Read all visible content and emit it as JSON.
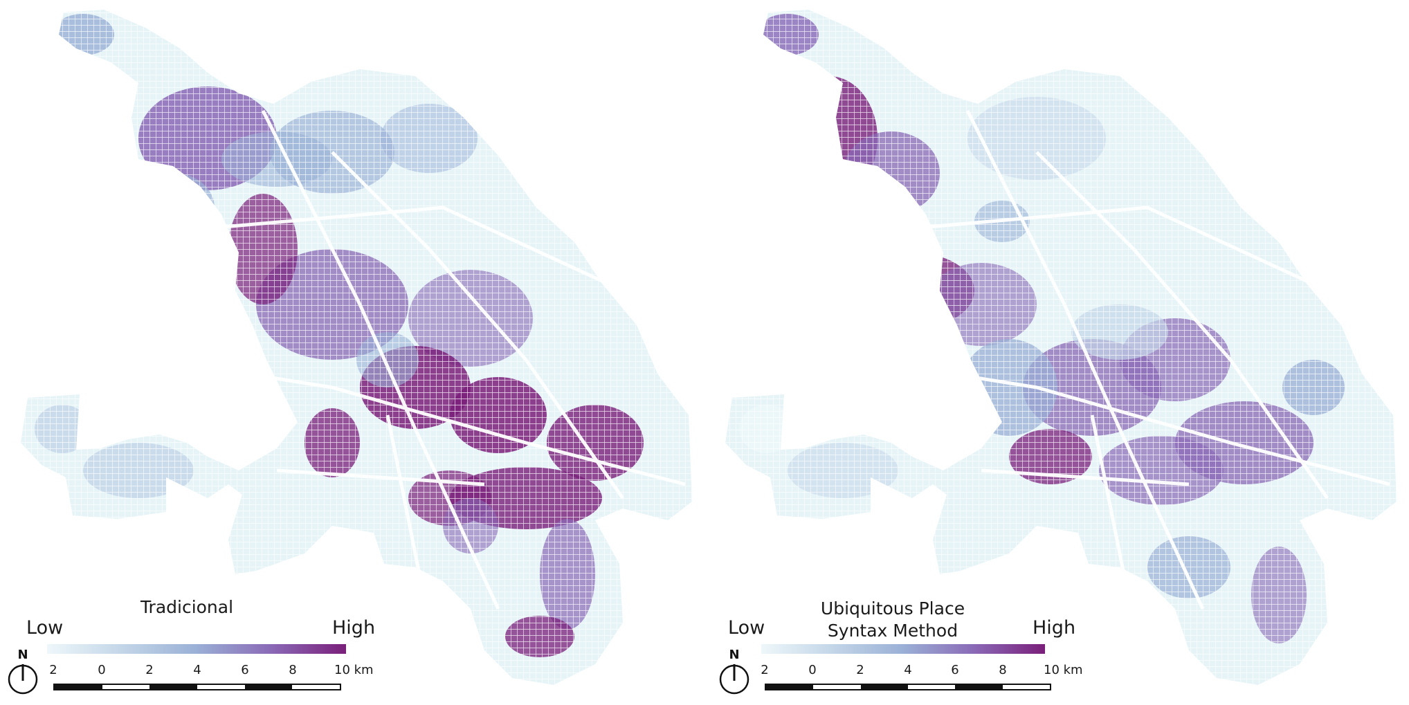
{
  "colors": {
    "background": "#ffffff",
    "ramp": [
      "#eef7fa",
      "#c3d6e8",
      "#9ab0d6",
      "#8a69b6",
      "#7a1f7a"
    ],
    "base": "#e6f4f8",
    "road": "#ffffff"
  },
  "maps": [
    {
      "title": "Tradicional",
      "legend": {
        "low": "Low",
        "high": "High"
      },
      "scale": {
        "ticks": [
          "2",
          "0",
          "2",
          "4",
          "6",
          "8",
          "10 km"
        ]
      },
      "north": {
        "label": "N",
        "icon": "north-arrow-icon"
      }
    },
    {
      "title": "Ubiquitous Place Syntax Method",
      "legend": {
        "low": "Low",
        "high": "High"
      },
      "scale": {
        "ticks": [
          "2",
          "0",
          "2",
          "4",
          "6",
          "8",
          "10 km"
        ]
      },
      "north": {
        "label": "N",
        "icon": "north-arrow-icon"
      }
    }
  ]
}
